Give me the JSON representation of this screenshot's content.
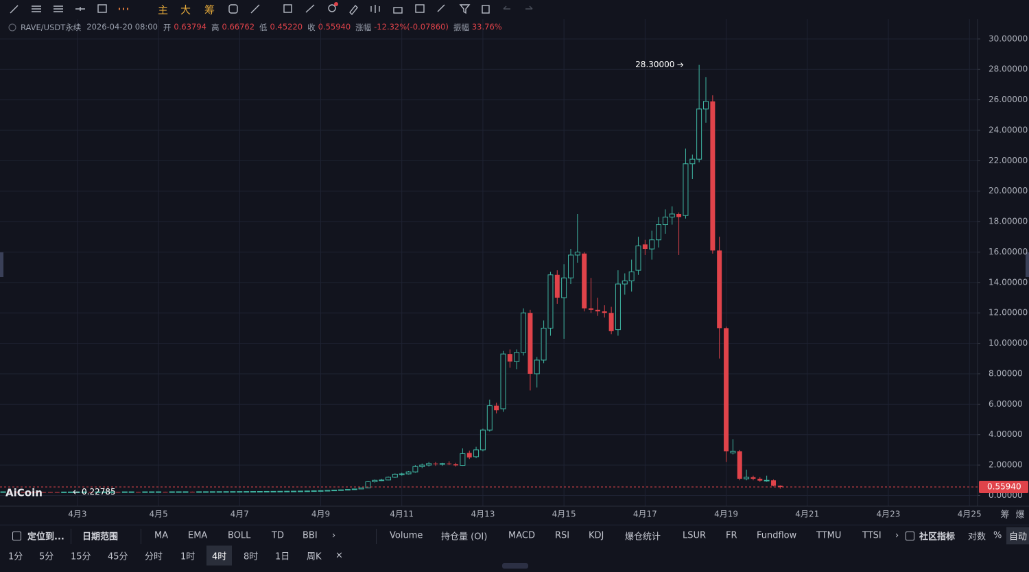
{
  "toolbar": {
    "buttons": [
      "主",
      "大",
      "筹"
    ]
  },
  "info_bar": {
    "symbol": "RAVE/USDT永续",
    "time": "2026-04-20 08:00",
    "fields": [
      {
        "label": "开",
        "value": "0.63794"
      },
      {
        "label": "高",
        "value": "0.66762"
      },
      {
        "label": "低",
        "value": "0.45220"
      },
      {
        "label": "收",
        "value": "0.55940"
      },
      {
        "label": "涨幅",
        "value": "-12.32%(-0.07860)"
      },
      {
        "label": "振幅",
        "value": "33.76%"
      }
    ]
  },
  "logo": "AiCoin",
  "axis_corner": [
    "筹",
    "爆"
  ],
  "indicator_bar": {
    "left": [
      "定位到...",
      "日期范围"
    ],
    "main": [
      "MA",
      "EMA",
      "BOLL",
      "TD",
      "BBI",
      "›"
    ],
    "sub": [
      "Volume",
      "持仓量 (OI)",
      "MACD",
      "RSI",
      "KDJ",
      "爆仓统计",
      "LSUR",
      "FR",
      "Fundflow",
      "TTMU",
      "TTSI",
      "›"
    ],
    "right": [
      "社区指标",
      "对数",
      "%",
      "自动"
    ]
  },
  "interval_bar": {
    "intervals": [
      "1分",
      "5分",
      "15分",
      "45分",
      "分时",
      "1时",
      "4时",
      "8时",
      "1日",
      "周K",
      "×"
    ],
    "active": "4时"
  },
  "chart_data": {
    "type": "candlestick",
    "up_color": "#3fb6a3",
    "down_color": "#e0434a",
    "grid": true,
    "xlim": [
      1.09,
      25.2
    ],
    "xticks": [
      {
        "value": 3,
        "label": "4月3"
      },
      {
        "value": 5,
        "label": "4月5"
      },
      {
        "value": 7,
        "label": "4月7"
      },
      {
        "value": 9,
        "label": "4月9"
      },
      {
        "value": 11,
        "label": "4月11"
      },
      {
        "value": 13,
        "label": "4月13"
      },
      {
        "value": 15,
        "label": "4月15"
      },
      {
        "value": 17,
        "label": "4月17"
      },
      {
        "value": 19,
        "label": "4月19"
      },
      {
        "value": 21,
        "label": "4月21"
      },
      {
        "value": 23,
        "label": "4月23"
      },
      {
        "value": 25,
        "label": "4月25"
      }
    ],
    "ylim": [
      -0.7,
      31.3
    ],
    "yticks": [
      {
        "value": 0,
        "label": "0.00000"
      },
      {
        "value": 2,
        "label": "2.00000"
      },
      {
        "value": 4,
        "label": "4.00000"
      },
      {
        "value": 6,
        "label": "6.00000"
      },
      {
        "value": 8,
        "label": "8.00000"
      },
      {
        "value": 10,
        "label": "10.00000"
      },
      {
        "value": 12,
        "label": "12.00000"
      },
      {
        "value": 14,
        "label": "14.00000"
      },
      {
        "value": 16,
        "label": "16.00000"
      },
      {
        "value": 18,
        "label": "18.00000"
      },
      {
        "value": 20,
        "label": "20.00000"
      },
      {
        "value": 22,
        "label": "22.00000"
      },
      {
        "value": 24,
        "label": "24.00000"
      },
      {
        "value": 26,
        "label": "26.00000"
      },
      {
        "value": 28,
        "label": "28.00000"
      },
      {
        "value": 30,
        "label": "30.00000"
      }
    ],
    "last_price": {
      "value": 0.5594,
      "label": "0.55940"
    },
    "annotations": [
      {
        "x": 18.0,
        "y": 28.3,
        "label": "28.30000",
        "side": "left"
      },
      {
        "x": 2.833,
        "y": 0.22785,
        "label": "0.22785",
        "side": "right"
      }
    ],
    "x": [
      1.167,
      1.333,
      1.5,
      1.667,
      1.833,
      2,
      2.167,
      2.333,
      2.5,
      2.667,
      2.833,
      3,
      3.167,
      3.333,
      3.5,
      3.667,
      3.833,
      4,
      4.167,
      4.333,
      4.5,
      4.667,
      4.833,
      5,
      5.167,
      5.333,
      5.5,
      5.667,
      5.833,
      6,
      6.167,
      6.333,
      6.5,
      6.667,
      6.833,
      7,
      7.167,
      7.333,
      7.5,
      7.667,
      7.833,
      8,
      8.167,
      8.333,
      8.5,
      8.667,
      8.833,
      9,
      9.167,
      9.333,
      9.5,
      9.667,
      9.833,
      10,
      10.167,
      10.333,
      10.5,
      10.667,
      10.833,
      11,
      11.167,
      11.333,
      11.5,
      11.667,
      11.833,
      12,
      12.167,
      12.333,
      12.5,
      12.667,
      12.833,
      13,
      13.167,
      13.333,
      13.5,
      13.667,
      13.833,
      14,
      14.167,
      14.333,
      14.5,
      14.667,
      14.833,
      15,
      15.167,
      15.333,
      15.5,
      15.667,
      15.833,
      16,
      16.167,
      16.333,
      16.5,
      16.667,
      16.833,
      17,
      17.167,
      17.333,
      17.5,
      17.667,
      17.833,
      18,
      18.167,
      18.333,
      18.5,
      18.667,
      18.833,
      19,
      19.167,
      19.333,
      19.5,
      19.667,
      19.833,
      20,
      20.167,
      20.333
    ],
    "ohlc": [
      [
        0.24,
        0.25,
        0.235,
        0.245
      ],
      [
        0.245,
        0.25,
        0.238,
        0.242
      ],
      [
        0.242,
        0.248,
        0.236,
        0.24
      ],
      [
        0.24,
        0.246,
        0.233,
        0.238
      ],
      [
        0.238,
        0.244,
        0.232,
        0.236
      ],
      [
        0.236,
        0.242,
        0.231,
        0.234
      ],
      [
        0.234,
        0.24,
        0.23,
        0.233
      ],
      [
        0.233,
        0.238,
        0.229,
        0.232
      ],
      [
        0.232,
        0.237,
        0.229,
        0.231
      ],
      [
        0.231,
        0.236,
        0.229,
        0.232
      ],
      [
        0.232,
        0.236,
        0.22785,
        0.234
      ],
      [
        0.234,
        0.24,
        0.23,
        0.236
      ],
      [
        0.236,
        0.242,
        0.232,
        0.238
      ],
      [
        0.238,
        0.243,
        0.233,
        0.237
      ],
      [
        0.237,
        0.242,
        0.232,
        0.239
      ],
      [
        0.239,
        0.244,
        0.234,
        0.24
      ],
      [
        0.24,
        0.245,
        0.235,
        0.241
      ],
      [
        0.241,
        0.246,
        0.236,
        0.24
      ],
      [
        0.24,
        0.245,
        0.235,
        0.242
      ],
      [
        0.242,
        0.247,
        0.237,
        0.243
      ],
      [
        0.243,
        0.248,
        0.238,
        0.242
      ],
      [
        0.242,
        0.247,
        0.237,
        0.244
      ],
      [
        0.244,
        0.249,
        0.239,
        0.245
      ],
      [
        0.245,
        0.25,
        0.24,
        0.246
      ],
      [
        0.246,
        0.251,
        0.241,
        0.245
      ],
      [
        0.245,
        0.25,
        0.24,
        0.247
      ],
      [
        0.247,
        0.252,
        0.242,
        0.248
      ],
      [
        0.248,
        0.253,
        0.243,
        0.249
      ],
      [
        0.249,
        0.254,
        0.244,
        0.248
      ],
      [
        0.248,
        0.253,
        0.243,
        0.25
      ],
      [
        0.25,
        0.255,
        0.245,
        0.251
      ],
      [
        0.251,
        0.257,
        0.246,
        0.253
      ],
      [
        0.253,
        0.259,
        0.248,
        0.255
      ],
      [
        0.255,
        0.261,
        0.25,
        0.257
      ],
      [
        0.257,
        0.263,
        0.252,
        0.259
      ],
      [
        0.259,
        0.265,
        0.254,
        0.261
      ],
      [
        0.261,
        0.267,
        0.256,
        0.263
      ],
      [
        0.263,
        0.27,
        0.258,
        0.266
      ],
      [
        0.266,
        0.273,
        0.26,
        0.269
      ],
      [
        0.269,
        0.276,
        0.263,
        0.272
      ],
      [
        0.272,
        0.28,
        0.266,
        0.275
      ],
      [
        0.275,
        0.283,
        0.27,
        0.279
      ],
      [
        0.279,
        0.287,
        0.273,
        0.283
      ],
      [
        0.283,
        0.292,
        0.277,
        0.288
      ],
      [
        0.288,
        0.298,
        0.282,
        0.294
      ],
      [
        0.294,
        0.305,
        0.288,
        0.3
      ],
      [
        0.3,
        0.315,
        0.294,
        0.31
      ],
      [
        0.31,
        0.325,
        0.303,
        0.32
      ],
      [
        0.32,
        0.34,
        0.313,
        0.335
      ],
      [
        0.335,
        0.36,
        0.328,
        0.355
      ],
      [
        0.355,
        0.38,
        0.348,
        0.375
      ],
      [
        0.375,
        0.41,
        0.368,
        0.4
      ],
      [
        0.4,
        0.44,
        0.39,
        0.43
      ],
      [
        0.43,
        0.52,
        0.42,
        0.5
      ],
      [
        0.5,
        0.95,
        0.48,
        0.9
      ],
      [
        0.9,
        1.05,
        0.85,
        1.0
      ],
      [
        1.0,
        1.1,
        0.95,
        1.02
      ],
      [
        1.02,
        1.25,
        1.0,
        1.2
      ],
      [
        1.2,
        1.45,
        1.15,
        1.4
      ],
      [
        1.4,
        1.5,
        1.3,
        1.42
      ],
      [
        1.42,
        1.6,
        1.38,
        1.55
      ],
      [
        1.55,
        2.0,
        1.5,
        1.9
      ],
      [
        1.9,
        2.1,
        1.8,
        2.0
      ],
      [
        2.0,
        2.2,
        1.9,
        2.1
      ],
      [
        2.1,
        2.2,
        1.95,
        2.05
      ],
      [
        2.05,
        2.15,
        1.95,
        2.1
      ],
      [
        2.1,
        2.25,
        2.0,
        2.05
      ],
      [
        2.05,
        2.15,
        1.9,
        1.98
      ],
      [
        1.98,
        3.1,
        1.95,
        2.75
      ],
      [
        2.8,
        2.95,
        2.4,
        2.5
      ],
      [
        2.55,
        3.2,
        2.45,
        3.0
      ],
      [
        3.0,
        4.4,
        2.9,
        4.3
      ],
      [
        4.3,
        6.3,
        4.2,
        5.9
      ],
      [
        5.9,
        6.1,
        5.4,
        5.6
      ],
      [
        5.7,
        9.5,
        5.5,
        9.3
      ],
      [
        9.3,
        9.6,
        8.4,
        8.8
      ],
      [
        8.8,
        9.6,
        8.3,
        9.4
      ],
      [
        9.4,
        12.3,
        9.2,
        12.0
      ],
      [
        12.0,
        12.2,
        6.9,
        8.0
      ],
      [
        8.0,
        9.1,
        7.1,
        8.9
      ],
      [
        8.9,
        11.5,
        8.7,
        11.0
      ],
      [
        11.0,
        14.7,
        10.5,
        14.5
      ],
      [
        14.5,
        14.8,
        12.6,
        13.0
      ],
      [
        13.0,
        15.2,
        10.3,
        14.3
      ],
      [
        14.3,
        16.2,
        13.9,
        15.8
      ],
      [
        15.8,
        18.5,
        15.3,
        16.0
      ],
      [
        15.9,
        16.0,
        12.1,
        12.3
      ],
      [
        12.3,
        14.3,
        12.0,
        12.2
      ],
      [
        12.2,
        13.0,
        11.8,
        12.1
      ],
      [
        12.1,
        12.5,
        11.7,
        12.0
      ],
      [
        12.0,
        12.4,
        10.6,
        10.8
      ],
      [
        10.9,
        14.8,
        10.5,
        13.9
      ],
      [
        13.9,
        14.6,
        13.2,
        14.1
      ],
      [
        14.1,
        15.5,
        13.4,
        14.7
      ],
      [
        14.8,
        17.0,
        14.5,
        16.4
      ],
      [
        16.5,
        16.8,
        15.8,
        16.2
      ],
      [
        16.2,
        17.4,
        15.5,
        16.8
      ],
      [
        16.8,
        18.3,
        16.3,
        17.8
      ],
      [
        17.8,
        18.8,
        17.2,
        18.3
      ],
      [
        18.3,
        19.0,
        17.8,
        18.5
      ],
      [
        18.5,
        18.6,
        15.8,
        18.3
      ],
      [
        18.4,
        22.8,
        18.2,
        21.8
      ],
      [
        21.8,
        22.4,
        20.8,
        22.1
      ],
      [
        22.1,
        28.3,
        21.9,
        25.4
      ],
      [
        25.4,
        27.5,
        24.5,
        25.9
      ],
      [
        25.9,
        26.3,
        15.9,
        16.1
      ],
      [
        16.1,
        17.0,
        9.0,
        11.0
      ],
      [
        11.0,
        11.1,
        2.2,
        2.9
      ],
      [
        2.8,
        3.7,
        2.7,
        2.9
      ],
      [
        2.9,
        3.0,
        1.0,
        1.1
      ],
      [
        1.1,
        1.7,
        1.0,
        1.2
      ],
      [
        1.2,
        1.3,
        1.0,
        1.1
      ],
      [
        1.1,
        1.2,
        0.9,
        0.98
      ],
      [
        0.98,
        1.3,
        0.9,
        1.0
      ],
      [
        1.0,
        1.05,
        0.6,
        0.638
      ],
      [
        0.63794,
        0.66762,
        0.4522,
        0.5594
      ]
    ]
  }
}
